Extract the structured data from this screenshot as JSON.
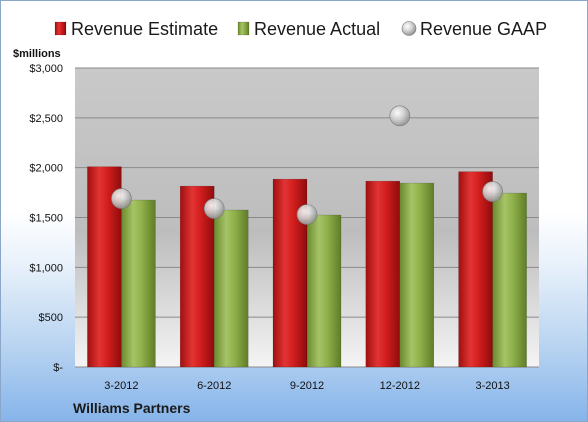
{
  "chart_data": {
    "type": "bar",
    "categories": [
      "3-2012",
      "6-2012",
      "9-2012",
      "12-2012",
      "3-2013"
    ],
    "series": [
      {
        "name": "Revenue Estimate",
        "kind": "bar",
        "color": "#d21d1d",
        "values": [
          2010,
          1815,
          1885,
          1865,
          1960
        ]
      },
      {
        "name": "Revenue Actual",
        "kind": "bar",
        "color": "#8fb04a",
        "values": [
          1675,
          1575,
          1525,
          1845,
          1745
        ]
      },
      {
        "name": "Revenue GAAP",
        "kind": "marker",
        "color": "#c8c8c8",
        "values": [
          1690,
          1590,
          1530,
          2520,
          1760
        ]
      }
    ],
    "ylabel": "$millions",
    "ylim": [
      0,
      3000
    ],
    "yticks": [
      0,
      500,
      1000,
      1500,
      2000,
      2500,
      3000
    ],
    "ytick_labels": [
      "$-",
      "$500",
      "$1,000",
      "$1,500",
      "$2,000",
      "$2,500",
      "$3,000"
    ],
    "grid": true,
    "legend": "top",
    "footer": "Williams Partners"
  }
}
